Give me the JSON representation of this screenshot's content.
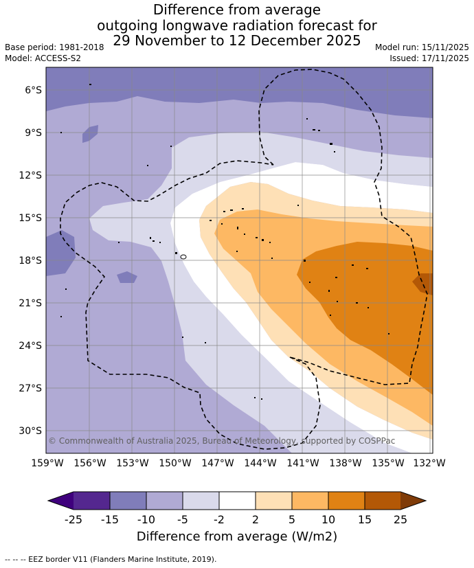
{
  "title": {
    "line1": "Difference from average",
    "line2": "outgoing longwave radiation forecast for",
    "line3": "29 November to 12 December 2025"
  },
  "meta": {
    "base_period": "Base period: 1981-2018",
    "model": "Model: ACCESS-S2",
    "model_run": "Model run: 15/11/2025",
    "issued": "Issued: 17/11/2025"
  },
  "map": {
    "lat_labels": [
      "6°S",
      "9°S",
      "12°S",
      "15°S",
      "18°S",
      "21°S",
      "24°S",
      "27°S",
      "30°S"
    ],
    "lon_labels": [
      "159°W",
      "156°W",
      "153°W",
      "150°W",
      "147°W",
      "144°W",
      "141°W",
      "138°W",
      "135°W",
      "132°W"
    ],
    "copyright": "© Commonwealth of Australia 2025, Bureau of Meteorology, supported by COSPPac"
  },
  "colorbar": {
    "ticks": [
      "-25",
      "-15",
      "-10",
      "-5",
      "-2",
      "2",
      "5",
      "10",
      "15",
      "25"
    ],
    "colors": [
      "#3f007d",
      "#54278f",
      "#807dba",
      "#b0aad4",
      "#dadaeb",
      "#ffffff",
      "#fee0b6",
      "#fdb863",
      "#e08214",
      "#b35806",
      "#7f3b08"
    ],
    "title": "Difference from average (W/m2)"
  },
  "legend": {
    "eez": "--  --  -- EEZ border V11 (Flanders Marine Institute, 2019)."
  }
}
